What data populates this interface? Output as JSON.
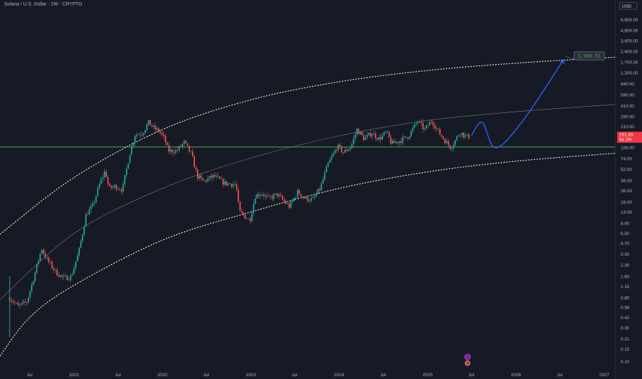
{
  "header": {
    "title": "Solana / U.S. Dollar · 1W · CRYPTO",
    "currency_button": "USD"
  },
  "colors": {
    "background": "#161a25",
    "up": "#26a69a",
    "down": "#ef5350",
    "channel": "#ffffff",
    "support": "#4caf50",
    "projection": "#2962ff",
    "price_tag": "#f23645",
    "target_box": "#5d606b",
    "target_text": "#4caf50"
  },
  "icons": {
    "event_marker": "dividend-event-icon"
  },
  "chart_data": {
    "type": "candlestick",
    "y_scale": "log",
    "ylim": [
      0.085,
      9000
    ],
    "xlim": [
      "2020-03-01",
      "2027-02-15"
    ],
    "y_ticks": [
      "6,800.00",
      "4,800.00",
      "3,400.00",
      "2,400.00",
      "1,700.00",
      "1,200.00",
      "840.00",
      "590.00",
      "410.00",
      "290.00",
      "210.00",
      "106.00",
      "74.00",
      "52.00",
      "36.00",
      "26.00",
      "18.00",
      "13.00",
      "9.00",
      "6.50",
      "4.70",
      "3.30",
      "2.30",
      "1.60",
      "1.15",
      "0.80",
      "0.58",
      "0.42",
      "0.30",
      "0.21",
      "0.15",
      "0.10"
    ],
    "x_ticks": [
      {
        "label": "Jul",
        "date": "2020-07-01"
      },
      {
        "label": "2021",
        "date": "2021-01-01"
      },
      {
        "label": "Jul",
        "date": "2021-07-01"
      },
      {
        "label": "2022",
        "date": "2022-01-01"
      },
      {
        "label": "Jul",
        "date": "2022-07-01"
      },
      {
        "label": "2023",
        "date": "2023-01-01"
      },
      {
        "label": "Jul",
        "date": "2023-07-01"
      },
      {
        "label": "2024",
        "date": "2024-01-01"
      },
      {
        "label": "Jul",
        "date": "2024-07-01"
      },
      {
        "label": "2025",
        "date": "2025-01-01"
      },
      {
        "label": "Jul",
        "date": "2025-07-01"
      },
      {
        "label": "2026",
        "date": "2026-01-01"
      },
      {
        "label": "Jul",
        "date": "2026-07-01"
      },
      {
        "label": "2027",
        "date": "2027-01-01"
      }
    ],
    "price_path": [
      [
        "2020-04-10",
        0.8
      ],
      [
        "2020-05-15",
        0.6
      ],
      [
        "2020-06-20",
        0.7
      ],
      [
        "2020-07-20",
        1.6
      ],
      [
        "2020-08-20",
        4.0
      ],
      [
        "2020-09-10",
        2.8
      ],
      [
        "2020-10-20",
        1.8
      ],
      [
        "2020-11-20",
        1.5
      ],
      [
        "2020-12-20",
        1.6
      ],
      [
        "2021-01-20",
        3.5
      ],
      [
        "2021-02-20",
        12
      ],
      [
        "2021-03-20",
        16
      ],
      [
        "2021-04-20",
        35
      ],
      [
        "2021-05-10",
        50
      ],
      [
        "2021-05-25",
        28
      ],
      [
        "2021-06-20",
        30
      ],
      [
        "2021-07-20",
        27
      ],
      [
        "2021-08-20",
        90
      ],
      [
        "2021-09-10",
        160
      ],
      [
        "2021-10-10",
        170
      ],
      [
        "2021-11-06",
        240
      ],
      [
        "2021-11-25",
        200
      ],
      [
        "2021-12-20",
        180
      ],
      [
        "2022-01-10",
        140
      ],
      [
        "2022-01-25",
        95
      ],
      [
        "2022-03-01",
        95
      ],
      [
        "2022-04-01",
        125
      ],
      [
        "2022-05-01",
        85
      ],
      [
        "2022-05-25",
        42
      ],
      [
        "2022-06-20",
        35
      ],
      [
        "2022-08-01",
        42
      ],
      [
        "2022-09-15",
        33
      ],
      [
        "2022-11-01",
        32
      ],
      [
        "2022-11-15",
        13
      ],
      [
        "2022-12-28",
        9.9
      ],
      [
        "2023-01-20",
        22
      ],
      [
        "2023-02-15",
        24
      ],
      [
        "2023-03-15",
        20
      ],
      [
        "2023-04-20",
        23
      ],
      [
        "2023-06-10",
        15.5
      ],
      [
        "2023-07-15",
        25
      ],
      [
        "2023-08-15",
        20
      ],
      [
        "2023-09-15",
        19.5
      ],
      [
        "2023-10-15",
        28
      ],
      [
        "2023-11-15",
        60
      ],
      [
        "2023-12-25",
        110
      ],
      [
        "2024-01-20",
        90
      ],
      [
        "2024-02-20",
        110
      ],
      [
        "2024-03-15",
        190
      ],
      [
        "2024-04-15",
        140
      ],
      [
        "2024-05-15",
        170
      ],
      [
        "2024-06-15",
        140
      ],
      [
        "2024-07-15",
        175
      ],
      [
        "2024-08-05",
        120
      ],
      [
        "2024-09-15",
        135
      ],
      [
        "2024-10-15",
        155
      ],
      [
        "2024-11-20",
        250
      ],
      [
        "2024-12-20",
        190
      ],
      [
        "2025-01-18",
        255
      ],
      [
        "2025-02-20",
        165
      ],
      [
        "2025-04-07",
        105
      ],
      [
        "2025-05-15",
        175
      ],
      [
        "2025-06-10",
        150
      ],
      [
        "2025-06-25",
        151.33
      ]
    ],
    "lines": [
      {
        "name": "upper-channel",
        "style": "dotted",
        "points": [
          [
            "2020-03-01",
            6.3
          ],
          [
            "2021-01-01",
            40
          ],
          [
            "2022-01-01",
            190
          ],
          [
            "2023-01-01",
            500
          ],
          [
            "2024-01-01",
            900
          ],
          [
            "2025-01-01",
            1300
          ],
          [
            "2026-01-01",
            1650
          ],
          [
            "2027-02-15",
            2000
          ]
        ]
      },
      {
        "name": "middle-curve",
        "style": "solid",
        "points": [
          [
            "2020-03-01",
            0.75
          ],
          [
            "2021-01-01",
            6.5
          ],
          [
            "2022-01-01",
            28
          ],
          [
            "2023-01-01",
            75
          ],
          [
            "2024-01-01",
            155
          ],
          [
            "2025-01-01",
            255
          ],
          [
            "2026-01-01",
            340
          ],
          [
            "2027-02-15",
            430
          ]
        ]
      },
      {
        "name": "lower-channel",
        "style": "dotted",
        "points": [
          [
            "2020-03-01",
            0.12
          ],
          [
            "2020-07-01",
            0.42
          ],
          [
            "2021-01-01",
            1.2
          ],
          [
            "2022-01-01",
            5.2
          ],
          [
            "2023-01-01",
            13
          ],
          [
            "2024-01-01",
            28
          ],
          [
            "2025-01-01",
            48
          ],
          [
            "2026-01-01",
            68
          ],
          [
            "2027-02-15",
            88
          ]
        ]
      },
      {
        "name": "horizontal-support",
        "style": "solid",
        "points": [
          [
            "2020-03-01",
            108
          ],
          [
            "2027-02-15",
            108
          ]
        ]
      }
    ],
    "projection": [
      [
        "2025-07-01",
        155
      ],
      [
        "2025-08-15",
        240
      ],
      [
        "2025-10-10",
        105
      ],
      [
        "2026-02-01",
        260
      ],
      [
        "2026-07-15",
        1800
      ]
    ],
    "target": {
      "label": "1,999.91",
      "value": 1999.91,
      "date": "2026-07-15"
    },
    "current_price": {
      "label": "151.33",
      "countdown": "5d 19h",
      "value": 151.33
    },
    "event_marker": {
      "date": "2025-06-15"
    }
  }
}
